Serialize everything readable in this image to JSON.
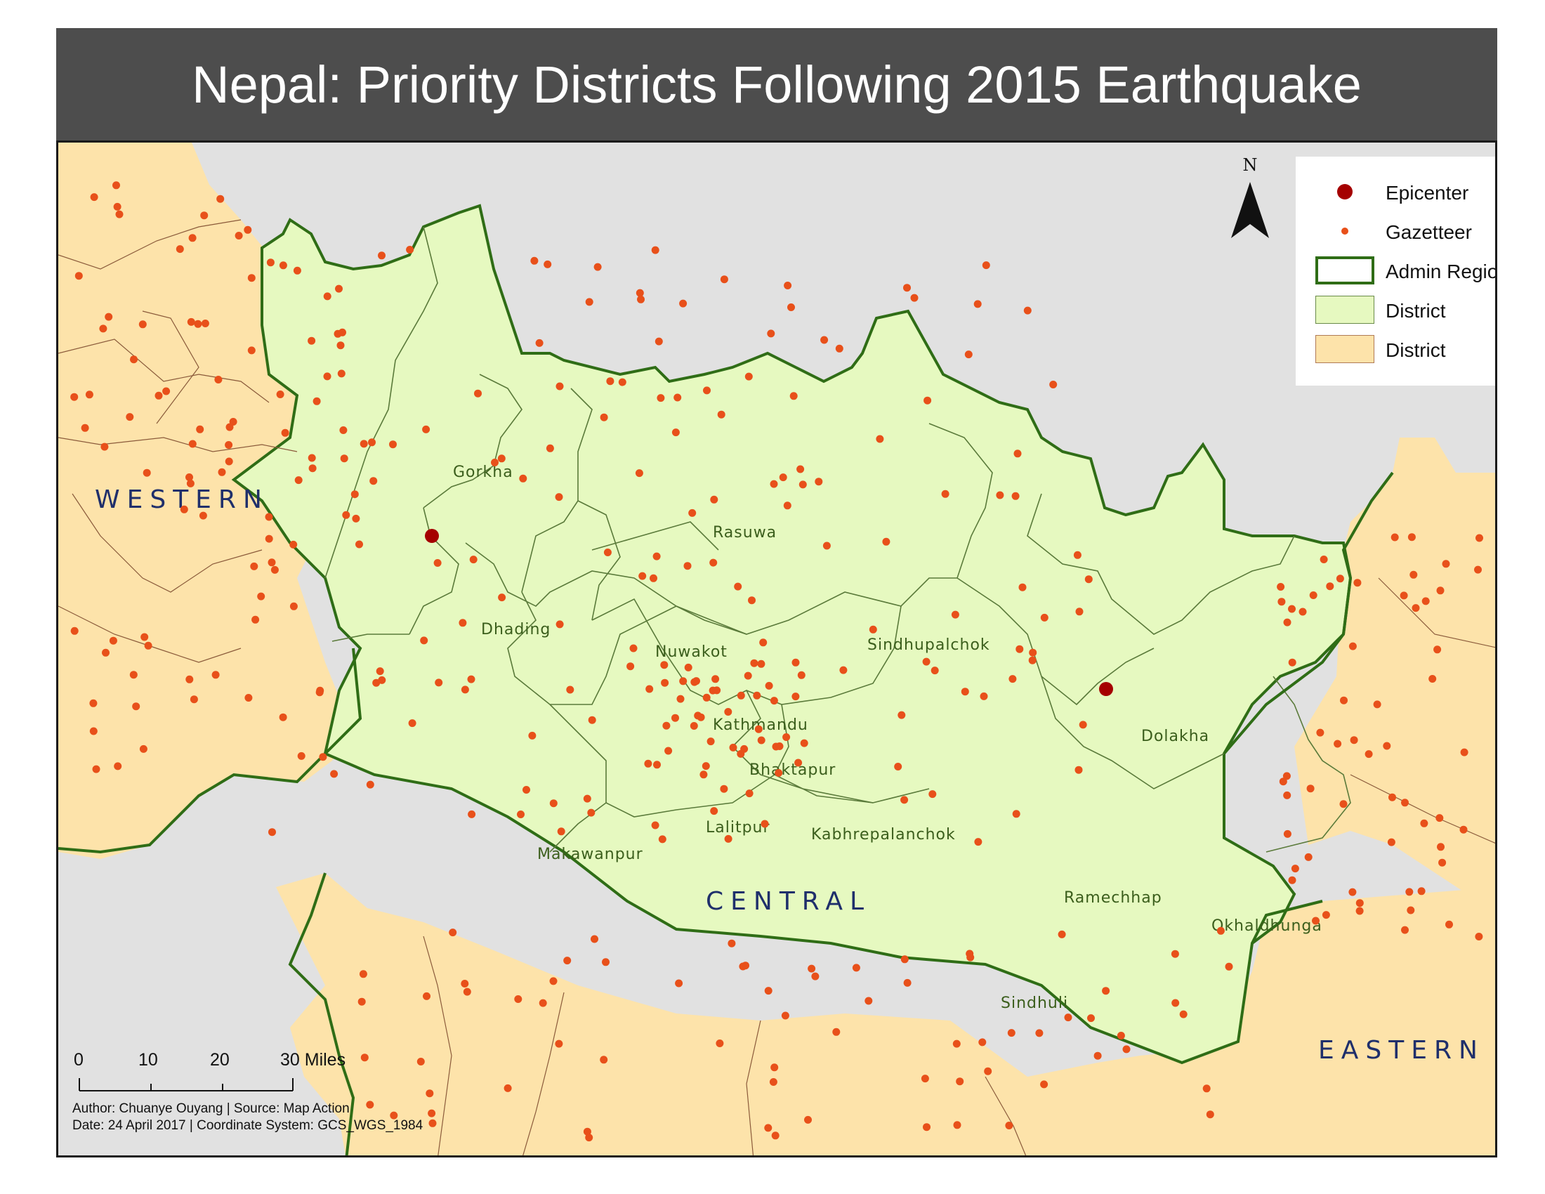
{
  "title": "Nepal: Priority Districts Following 2015 Earthquake",
  "colors": {
    "title_bar": "#4d4d4d",
    "background": "#e1e1e1",
    "priority_district": "#e6f9c0",
    "other_district": "#fde3aa",
    "admin_border": "#2f6d16",
    "district_border": "#5a7a3a",
    "epicenter": "#a50000",
    "gazetteer": "#e8501a"
  },
  "legend": {
    "items": [
      {
        "label": "Epicenter",
        "symbol": "large-dark-red-dot"
      },
      {
        "label": "Gazetteer",
        "symbol": "small-orange-dot"
      },
      {
        "label": "Admin Region",
        "symbol": "white-box-green-outline"
      },
      {
        "label": "District",
        "symbol": "light-green-box"
      },
      {
        "label": "District",
        "symbol": "tan-box"
      }
    ]
  },
  "north_arrow": {
    "label": "N"
  },
  "scale_bar": {
    "ticks": [
      "0",
      "10",
      "20",
      "30 Miles"
    ]
  },
  "credits": {
    "line1": "Author: Chuanye Ouyang | Source: Map Action",
    "line2": "Date: 24 April 2017 | Coordinate System: GCS_WGS_1984"
  },
  "regions": [
    "WESTERN",
    "CENTRAL",
    "EASTERN"
  ],
  "districts": [
    "Gorkha",
    "Dhading",
    "Rasuwa",
    "Nuwakot",
    "Sindhupalchok",
    "Kathmandu",
    "Bhaktapur",
    "Lalitpur",
    "Kabhrepalanchok",
    "Makawanpur",
    "Dolakha",
    "Ramechhap",
    "Okhaldhunga",
    "Sindhuli"
  ]
}
